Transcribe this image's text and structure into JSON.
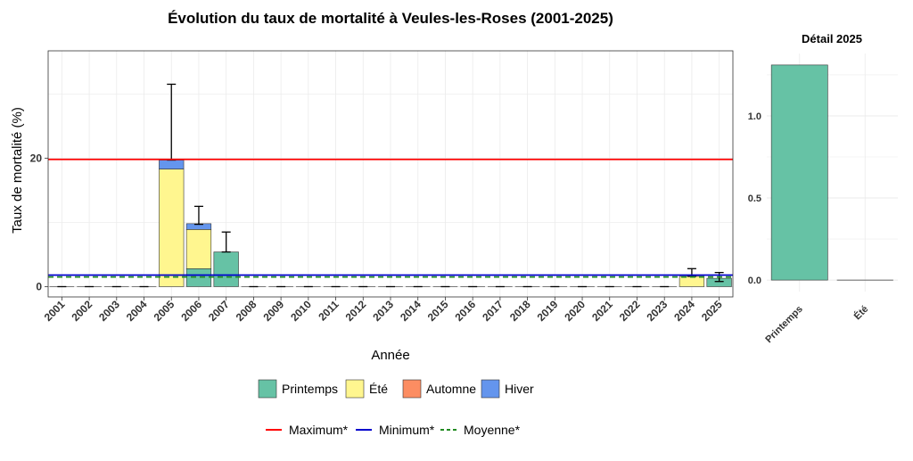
{
  "chart_data": [
    {
      "type": "bar",
      "title": "Évolution du taux de mortalité à Veules-les-Roses (2001-2025)",
      "xlabel": "Année",
      "ylabel": "Taux de mortalité (%)",
      "stacked": true,
      "grid": true,
      "ylim": [
        -1.6,
        36.7
      ],
      "yticks": [
        0,
        20
      ],
      "categories": [
        "2001",
        "2002",
        "2003",
        "2004",
        "2005",
        "2006",
        "2007",
        "2008",
        "2009",
        "2010",
        "2011",
        "2012",
        "2013",
        "2014",
        "2015",
        "2016",
        "2017",
        "2018",
        "2019",
        "2020",
        "2021",
        "2022",
        "2023",
        "2024",
        "2025"
      ],
      "series": [
        {
          "name": "Printemps",
          "color": "#66C2A5",
          "values": [
            0,
            0,
            0,
            0,
            0,
            2.8,
            5.4,
            0,
            0,
            0,
            0,
            0,
            0,
            0,
            0,
            0,
            0,
            0,
            0,
            0,
            0,
            0,
            0,
            0,
            1.3
          ]
        },
        {
          "name": "Été",
          "color": "#FFF68F",
          "values": [
            0,
            0,
            0,
            0,
            18.3,
            6.1,
            0,
            0,
            0,
            0,
            0,
            0,
            0,
            0,
            0,
            0,
            0,
            0,
            0,
            0,
            0,
            0,
            0,
            1.6,
            0
          ]
        },
        {
          "name": "Automne",
          "color": "#FC8D62",
          "values": [
            0,
            0,
            0,
            0,
            0,
            0,
            0,
            0,
            0,
            0,
            0,
            0,
            0,
            0,
            0,
            0,
            0,
            0,
            0,
            0,
            0,
            0,
            0,
            0,
            0
          ]
        },
        {
          "name": "Hiver",
          "color": "#6495ED",
          "values": [
            0,
            0,
            0,
            0,
            1.4,
            0.9,
            0,
            0,
            0,
            0,
            0,
            0,
            0,
            0,
            0,
            0,
            0,
            0,
            0,
            0,
            0,
            0,
            0,
            0,
            0
          ]
        }
      ],
      "error_upper": [
        0,
        0,
        0,
        0,
        31.5,
        12.5,
        8.5,
        0,
        0,
        0,
        0,
        0,
        0,
        0,
        0,
        0,
        0,
        0,
        0,
        0,
        0,
        0,
        0,
        2.8,
        2.2
      ],
      "error_lower": [
        0,
        0,
        0,
        0,
        19.7,
        9.7,
        5.4,
        0,
        0,
        0,
        0,
        0,
        0,
        0,
        0,
        0,
        0,
        0,
        0,
        0,
        0,
        0,
        0,
        1.6,
        0.8
      ],
      "reference_lines": [
        {
          "name": "Maximum*",
          "value": 19.8,
          "color": "#FF0000",
          "style": "solid"
        },
        {
          "name": "Minimum*",
          "value": 1.8,
          "color": "#0000CD",
          "style": "solid"
        },
        {
          "name": "Moyenne*",
          "value": 1.5,
          "color": "#228B22",
          "style": "dashed"
        }
      ],
      "legend_position": "bottom"
    },
    {
      "type": "bar",
      "title": "Détail 2025",
      "categories": [
        "Printemps",
        "Été"
      ],
      "values": [
        1.31,
        0
      ],
      "colors": [
        "#66C2A5",
        "#FFF68F"
      ],
      "ylim": [
        -0.07,
        1.38
      ],
      "yticks": [
        0.0,
        0.5,
        1.0
      ],
      "ytick_labels": [
        "0.0",
        "0.5",
        "1.0"
      ],
      "grid": true
    }
  ],
  "legend": {
    "fill_items": [
      {
        "label": "Printemps",
        "color": "#66C2A5"
      },
      {
        "label": "Été",
        "color": "#FFF68F"
      },
      {
        "label": "Automne",
        "color": "#FC8D62"
      },
      {
        "label": "Hiver",
        "color": "#6495ED"
      }
    ],
    "line_items": [
      {
        "label": "Maximum*",
        "color": "#FF0000",
        "style": "solid"
      },
      {
        "label": "Minimum*",
        "color": "#0000CD",
        "style": "solid"
      },
      {
        "label": "Moyenne*",
        "color": "#228B22",
        "style": "dashed"
      }
    ]
  }
}
